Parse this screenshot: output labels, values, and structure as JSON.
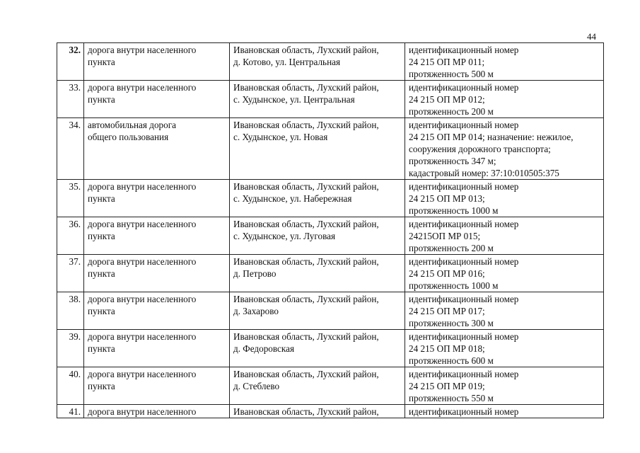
{
  "page_number": "44",
  "rows": [
    {
      "num": "32.",
      "type": [
        "дорога внутри населенного",
        "пункта"
      ],
      "location": [
        "Ивановская область, Лухский район,",
        "д. Котово, ул. Центральная"
      ],
      "details": [
        "идентификационный номер",
        "24 215 ОП МР 011;",
        "протяженность 500 м"
      ]
    },
    {
      "num": "33.",
      "type": [
        "дорога внутри населенного",
        "пункта"
      ],
      "location": [
        "Ивановская область, Лухский район,",
        "с. Худынское, ул. Центральная"
      ],
      "details": [
        "идентификационный номер",
        "24 215 ОП МР 012;",
        "протяженность 200 м"
      ]
    },
    {
      "num": "34.",
      "type": [
        "автомобильная дорога",
        "общего пользования"
      ],
      "location": [
        "Ивановская область, Лухский район,",
        "с. Худынское, ул. Новая"
      ],
      "details": [
        "идентификационный номер",
        "24 215 ОП МР 014;  назначение: нежилое,",
        "сооружения дорожного транспорта;",
        "протяженность 347 м;",
        "кадастровый номер: 37:10:010505:375"
      ]
    },
    {
      "num": "35.",
      "type": [
        "дорога внутри населенного",
        "пункта"
      ],
      "location": [
        "Ивановская область, Лухский район,",
        "с. Худынское, ул. Набережная"
      ],
      "details": [
        "идентификационный номер",
        "24 215 ОП МР 013;",
        "протяженность 1000 м"
      ]
    },
    {
      "num": "36.",
      "type": [
        "дорога внутри населенного",
        "пункта"
      ],
      "location": [
        "Ивановская область, Лухский район,",
        "с. Худынское, ул. Луговая"
      ],
      "details": [
        "идентификационный номер",
        "24215ОП МР 015;",
        "протяженность 200 м"
      ]
    },
    {
      "num": "37.",
      "type": [
        "дорога внутри населенного",
        "пункта"
      ],
      "location": [
        "Ивановская область, Лухский район,",
        "д. Петрово"
      ],
      "details": [
        "идентификационный номер",
        "24 215 ОП МР 016;",
        "протяженность 1000 м"
      ]
    },
    {
      "num": "38.",
      "type": [
        "дорога внутри населенного",
        "пункта"
      ],
      "location": [
        "Ивановская область, Лухский район,",
        "д. Захарово"
      ],
      "details": [
        "идентификационный номер",
        "24 215 ОП МР 017;",
        "протяженность 300 м"
      ]
    },
    {
      "num": "39.",
      "type": [
        "дорога внутри населенного",
        "пункта"
      ],
      "location": [
        "Ивановская область, Лухский район,",
        "д. Федоровская"
      ],
      "details": [
        "идентификационный номер",
        "24 215 ОП МР 018;",
        "протяженность 600 м"
      ]
    },
    {
      "num": "40.",
      "type": [
        "дорога внутри населенного",
        "пункта"
      ],
      "location": [
        "Ивановская область, Лухский район,",
        "д. Стеблево"
      ],
      "details": [
        "идентификационный номер",
        "24 215 ОП МР 019;",
        "протяженность 550 м"
      ]
    },
    {
      "num": "41.",
      "type": [
        "дорога внутри населенного"
      ],
      "location": [
        "Ивановская область, Лухский район,"
      ],
      "details": [
        "идентификационный номер"
      ]
    }
  ]
}
